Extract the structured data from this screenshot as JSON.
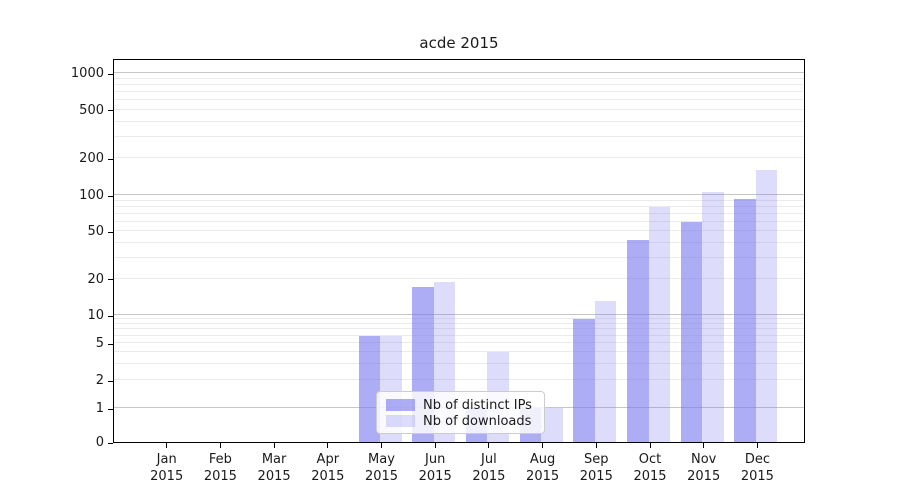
{
  "chart_data": {
    "type": "bar",
    "title": "acde 2015",
    "categories": [
      "Jan",
      "Feb",
      "Mar",
      "Apr",
      "May",
      "Jun",
      "Jul",
      "Aug",
      "Sep",
      "Oct",
      "Nov",
      "Dec"
    ],
    "year_label": "2015",
    "series": [
      {
        "name": "Nb of distinct IPs",
        "color": "#7777ee",
        "fill_opacity": 0.6,
        "values": [
          0,
          0,
          0,
          0,
          6,
          17,
          1,
          1,
          9,
          42,
          60,
          92
        ]
      },
      {
        "name": "Nb of downloads",
        "color": "#7777ee",
        "fill_opacity": 0.25,
        "values": [
          0,
          0,
          0,
          0,
          6,
          19,
          4,
          1,
          13,
          80,
          105,
          160
        ]
      }
    ],
    "xlabel": "",
    "ylabel": "",
    "yscale": "symlog",
    "yticks": [
      0,
      1,
      2,
      5,
      10,
      20,
      50,
      100,
      200,
      500,
      1000
    ],
    "ylim": [
      0,
      1300
    ],
    "grid": "on",
    "legend": {
      "position": "lower-center",
      "labels": [
        "Nb of distinct IPs",
        "Nb of downloads"
      ]
    }
  }
}
